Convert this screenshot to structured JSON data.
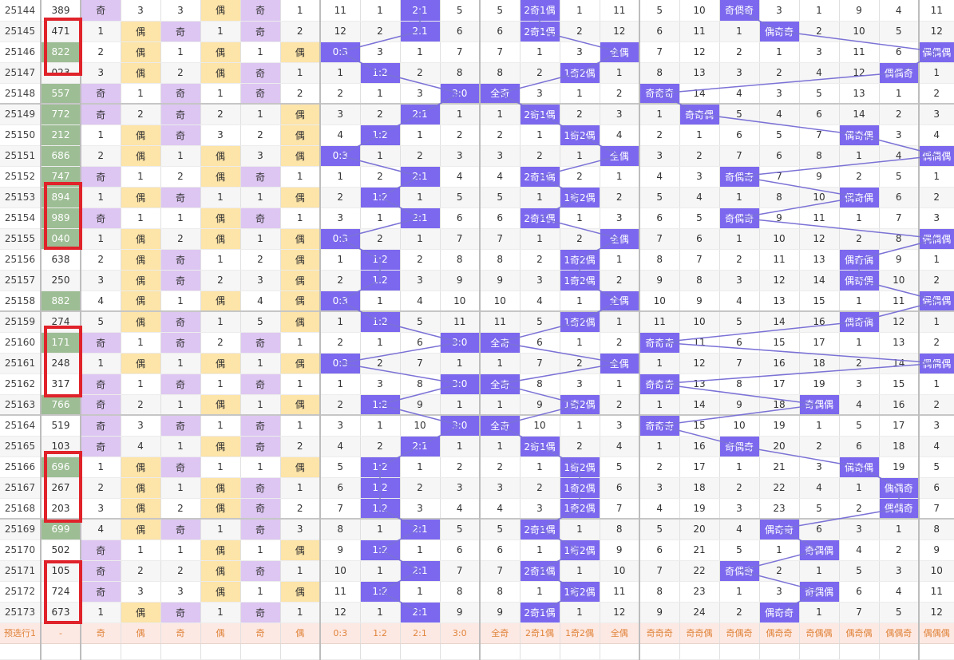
{
  "colors": {
    "green": "#9dbd94",
    "purple_light": "#ddc6f2",
    "yellow_light": "#fde4a8",
    "blue_violet": "#7b68ee",
    "red_box": "#e0222a",
    "forecast_bg": "#fde9e3",
    "forecast_text": "#e0843b",
    "line": "#7b72d6"
  },
  "rows": [
    {
      "c": [
        "25144",
        "389",
        "奇",
        "3",
        "3",
        "偶",
        "奇",
        "1",
        "11",
        "1",
        "2:1",
        "5",
        "5",
        "2奇1偶",
        "1",
        "11",
        "5",
        "10",
        "奇偶奇",
        "3",
        "1",
        "9",
        "4",
        "11"
      ],
      "green": false
    },
    {
      "c": [
        "25145",
        "471",
        "1",
        "偶",
        "奇",
        "1",
        "奇",
        "2",
        "12",
        "2",
        "2:1",
        "6",
        "6",
        "2奇1偶",
        "2",
        "12",
        "6",
        "11",
        "1",
        "偶奇奇",
        "2",
        "10",
        "5",
        "12"
      ],
      "green": false
    },
    {
      "c": [
        "25146",
        "822",
        "2",
        "偶",
        "1",
        "偶",
        "1",
        "偶",
        "0:3",
        "3",
        "1",
        "7",
        "7",
        "1",
        "3",
        "全偶",
        "7",
        "12",
        "2",
        "1",
        "3",
        "11",
        "6",
        "偶偶偶"
      ],
      "green": true
    },
    {
      "c": [
        "25147",
        "023",
        "3",
        "偶",
        "2",
        "偶",
        "奇",
        "1",
        "1",
        "1:2",
        "2",
        "8",
        "8",
        "2",
        "1奇2偶",
        "1",
        "8",
        "13",
        "3",
        "2",
        "4",
        "12",
        "偶偶奇",
        "1"
      ],
      "green": false
    },
    {
      "c": [
        "25148",
        "557",
        "奇",
        "1",
        "奇",
        "1",
        "奇",
        "2",
        "2",
        "1",
        "3",
        "3:0",
        "全奇",
        "3",
        "1",
        "2",
        "奇奇奇",
        "14",
        "4",
        "3",
        "5",
        "13",
        "1",
        "2"
      ],
      "green": true
    },
    {
      "c": [
        "25149",
        "772",
        "奇",
        "2",
        "奇",
        "2",
        "1",
        "偶",
        "3",
        "2",
        "2:1",
        "1",
        "1",
        "2奇1偶",
        "2",
        "3",
        "1",
        "奇奇偶",
        "5",
        "4",
        "6",
        "14",
        "2",
        "3"
      ],
      "green": true
    },
    {
      "c": [
        "25150",
        "212",
        "1",
        "偶",
        "奇",
        "3",
        "2",
        "偶",
        "4",
        "1:2",
        "1",
        "2",
        "2",
        "1",
        "1奇2偶",
        "4",
        "2",
        "1",
        "6",
        "5",
        "7",
        "偶奇偶",
        "3",
        "4"
      ],
      "green": true
    },
    {
      "c": [
        "25151",
        "686",
        "2",
        "偶",
        "1",
        "偶",
        "3",
        "偶",
        "0:3",
        "1",
        "2",
        "3",
        "3",
        "2",
        "1",
        "全偶",
        "3",
        "2",
        "7",
        "6",
        "8",
        "1",
        "4",
        "偶偶偶"
      ],
      "green": true
    },
    {
      "c": [
        "25152",
        "747",
        "奇",
        "1",
        "2",
        "偶",
        "奇",
        "1",
        "1",
        "2",
        "2:1",
        "4",
        "4",
        "2奇1偶",
        "2",
        "1",
        "4",
        "3",
        "奇偶奇",
        "7",
        "9",
        "2",
        "5",
        "1"
      ],
      "green": true
    },
    {
      "c": [
        "25153",
        "894",
        "1",
        "偶",
        "奇",
        "1",
        "1",
        "偶",
        "2",
        "1:2",
        "1",
        "5",
        "5",
        "1",
        "1奇2偶",
        "2",
        "5",
        "4",
        "1",
        "8",
        "10",
        "偶奇偶",
        "6",
        "2"
      ],
      "green": true
    },
    {
      "c": [
        "25154",
        "989",
        "奇",
        "1",
        "1",
        "偶",
        "奇",
        "1",
        "3",
        "1",
        "2:1",
        "6",
        "6",
        "2奇1偶",
        "1",
        "3",
        "6",
        "5",
        "奇偶奇",
        "9",
        "11",
        "1",
        "7",
        "3"
      ],
      "green": true
    },
    {
      "c": [
        "25155",
        "040",
        "1",
        "偶",
        "2",
        "偶",
        "1",
        "偶",
        "0:3",
        "2",
        "1",
        "7",
        "7",
        "1",
        "2",
        "全偶",
        "7",
        "6",
        "1",
        "10",
        "12",
        "2",
        "8",
        "偶偶偶"
      ],
      "green": true
    },
    {
      "c": [
        "25156",
        "638",
        "2",
        "偶",
        "奇",
        "1",
        "2",
        "偶",
        "1",
        "1:2",
        "2",
        "8",
        "8",
        "2",
        "1奇2偶",
        "1",
        "8",
        "7",
        "2",
        "11",
        "13",
        "偶奇偶",
        "9",
        "1"
      ],
      "green": false
    },
    {
      "c": [
        "25157",
        "250",
        "3",
        "偶",
        "奇",
        "2",
        "3",
        "偶",
        "2",
        "1:2",
        "3",
        "9",
        "9",
        "3",
        "1奇2偶",
        "2",
        "9",
        "8",
        "3",
        "12",
        "14",
        "偶奇偶",
        "10",
        "2"
      ],
      "green": false
    },
    {
      "c": [
        "25158",
        "882",
        "4",
        "偶",
        "1",
        "偶",
        "4",
        "偶",
        "0:3",
        "1",
        "4",
        "10",
        "10",
        "4",
        "1",
        "全偶",
        "10",
        "9",
        "4",
        "13",
        "15",
        "1",
        "11",
        "偶偶偶"
      ],
      "green": true
    },
    {
      "c": [
        "25159",
        "274",
        "5",
        "偶",
        "奇",
        "1",
        "5",
        "偶",
        "1",
        "1:2",
        "5",
        "11",
        "11",
        "5",
        "1奇2偶",
        "1",
        "11",
        "10",
        "5",
        "14",
        "16",
        "偶奇偶",
        "12",
        "1"
      ],
      "green": false
    },
    {
      "c": [
        "25160",
        "171",
        "奇",
        "1",
        "奇",
        "2",
        "奇",
        "1",
        "2",
        "1",
        "6",
        "3:0",
        "全奇",
        "6",
        "1",
        "2",
        "奇奇奇",
        "11",
        "6",
        "15",
        "17",
        "1",
        "13",
        "2"
      ],
      "green": true
    },
    {
      "c": [
        "25161",
        "248",
        "1",
        "偶",
        "1",
        "偶",
        "1",
        "偶",
        "0:3",
        "2",
        "7",
        "1",
        "1",
        "7",
        "2",
        "全偶",
        "1",
        "12",
        "7",
        "16",
        "18",
        "2",
        "14",
        "偶偶偶"
      ],
      "green": false
    },
    {
      "c": [
        "25162",
        "317",
        "奇",
        "1",
        "奇",
        "1",
        "奇",
        "1",
        "1",
        "3",
        "8",
        "3:0",
        "全奇",
        "8",
        "3",
        "1",
        "奇奇奇",
        "13",
        "8",
        "17",
        "19",
        "3",
        "15",
        "1"
      ],
      "green": false
    },
    {
      "c": [
        "25163",
        "766",
        "奇",
        "2",
        "1",
        "偶",
        "1",
        "偶",
        "2",
        "1:2",
        "9",
        "1",
        "1",
        "9",
        "1奇2偶",
        "2",
        "1",
        "14",
        "9",
        "18",
        "奇偶偶",
        "4",
        "16",
        "2"
      ],
      "green": true
    },
    {
      "c": [
        "25164",
        "519",
        "奇",
        "3",
        "奇",
        "1",
        "奇",
        "1",
        "3",
        "1",
        "10",
        "3:0",
        "全奇",
        "10",
        "1",
        "3",
        "奇奇奇",
        "15",
        "10",
        "19",
        "1",
        "5",
        "17",
        "3"
      ],
      "green": false
    },
    {
      "c": [
        "25165",
        "103",
        "奇",
        "4",
        "1",
        "偶",
        "奇",
        "2",
        "4",
        "2",
        "2:1",
        "1",
        "1",
        "2奇1偶",
        "2",
        "4",
        "1",
        "16",
        "奇偶奇",
        "20",
        "2",
        "6",
        "18",
        "4"
      ],
      "green": false
    },
    {
      "c": [
        "25166",
        "696",
        "1",
        "偶",
        "奇",
        "1",
        "1",
        "偶",
        "5",
        "1:2",
        "1",
        "2",
        "2",
        "1",
        "1奇2偶",
        "5",
        "2",
        "17",
        "1",
        "21",
        "3",
        "偶奇偶",
        "19",
        "5"
      ],
      "green": true
    },
    {
      "c": [
        "25167",
        "267",
        "2",
        "偶",
        "1",
        "偶",
        "奇",
        "1",
        "6",
        "1:2",
        "2",
        "3",
        "3",
        "2",
        "1奇2偶",
        "6",
        "3",
        "18",
        "2",
        "22",
        "4",
        "1",
        "偶偶奇",
        "6"
      ],
      "green": false
    },
    {
      "c": [
        "25168",
        "203",
        "3",
        "偶",
        "2",
        "偶",
        "奇",
        "2",
        "7",
        "1:2",
        "3",
        "4",
        "4",
        "3",
        "1奇2偶",
        "7",
        "4",
        "19",
        "3",
        "23",
        "5",
        "2",
        "偶偶奇",
        "7"
      ],
      "green": false
    },
    {
      "c": [
        "25169",
        "699",
        "4",
        "偶",
        "奇",
        "1",
        "奇",
        "3",
        "8",
        "1",
        "2:1",
        "5",
        "5",
        "2奇1偶",
        "1",
        "8",
        "5",
        "20",
        "4",
        "偶奇奇",
        "6",
        "3",
        "1",
        "8"
      ],
      "green": true
    },
    {
      "c": [
        "25170",
        "502",
        "奇",
        "1",
        "1",
        "偶",
        "1",
        "偶",
        "9",
        "1:2",
        "1",
        "6",
        "6",
        "1",
        "1奇2偶",
        "9",
        "6",
        "21",
        "5",
        "1",
        "奇偶偶",
        "4",
        "2",
        "9"
      ],
      "green": false
    },
    {
      "c": [
        "25171",
        "105",
        "奇",
        "2",
        "2",
        "偶",
        "奇",
        "1",
        "10",
        "1",
        "2:1",
        "7",
        "7",
        "2奇1偶",
        "1",
        "10",
        "7",
        "22",
        "奇偶奇",
        "2",
        "1",
        "5",
        "3",
        "10"
      ],
      "green": false
    },
    {
      "c": [
        "25172",
        "724",
        "奇",
        "3",
        "3",
        "偶",
        "1",
        "偶",
        "11",
        "1:2",
        "1",
        "8",
        "8",
        "1",
        "1奇2偶",
        "11",
        "8",
        "23",
        "1",
        "3",
        "奇偶偶",
        "6",
        "4",
        "11"
      ],
      "green": false
    },
    {
      "c": [
        "25173",
        "673",
        "1",
        "偶",
        "奇",
        "1",
        "奇",
        "1",
        "12",
        "1",
        "2:1",
        "9",
        "9",
        "2奇1偶",
        "1",
        "12",
        "9",
        "24",
        "2",
        "偶奇奇",
        "1",
        "7",
        "5",
        "12"
      ],
      "green": false
    }
  ],
  "forecast": [
    "预选行1",
    "-",
    "奇",
    "偶",
    "奇",
    "偶",
    "奇",
    "偶",
    "0:3",
    "1:2",
    "2:1",
    "3:0",
    "全奇",
    "2奇1偶",
    "1奇2偶",
    "全偶",
    "奇奇奇",
    "奇奇偶",
    "奇偶奇",
    "偶奇奇",
    "奇偶偶",
    "偶奇偶",
    "偶偶奇",
    "偶偶偶"
  ]
}
